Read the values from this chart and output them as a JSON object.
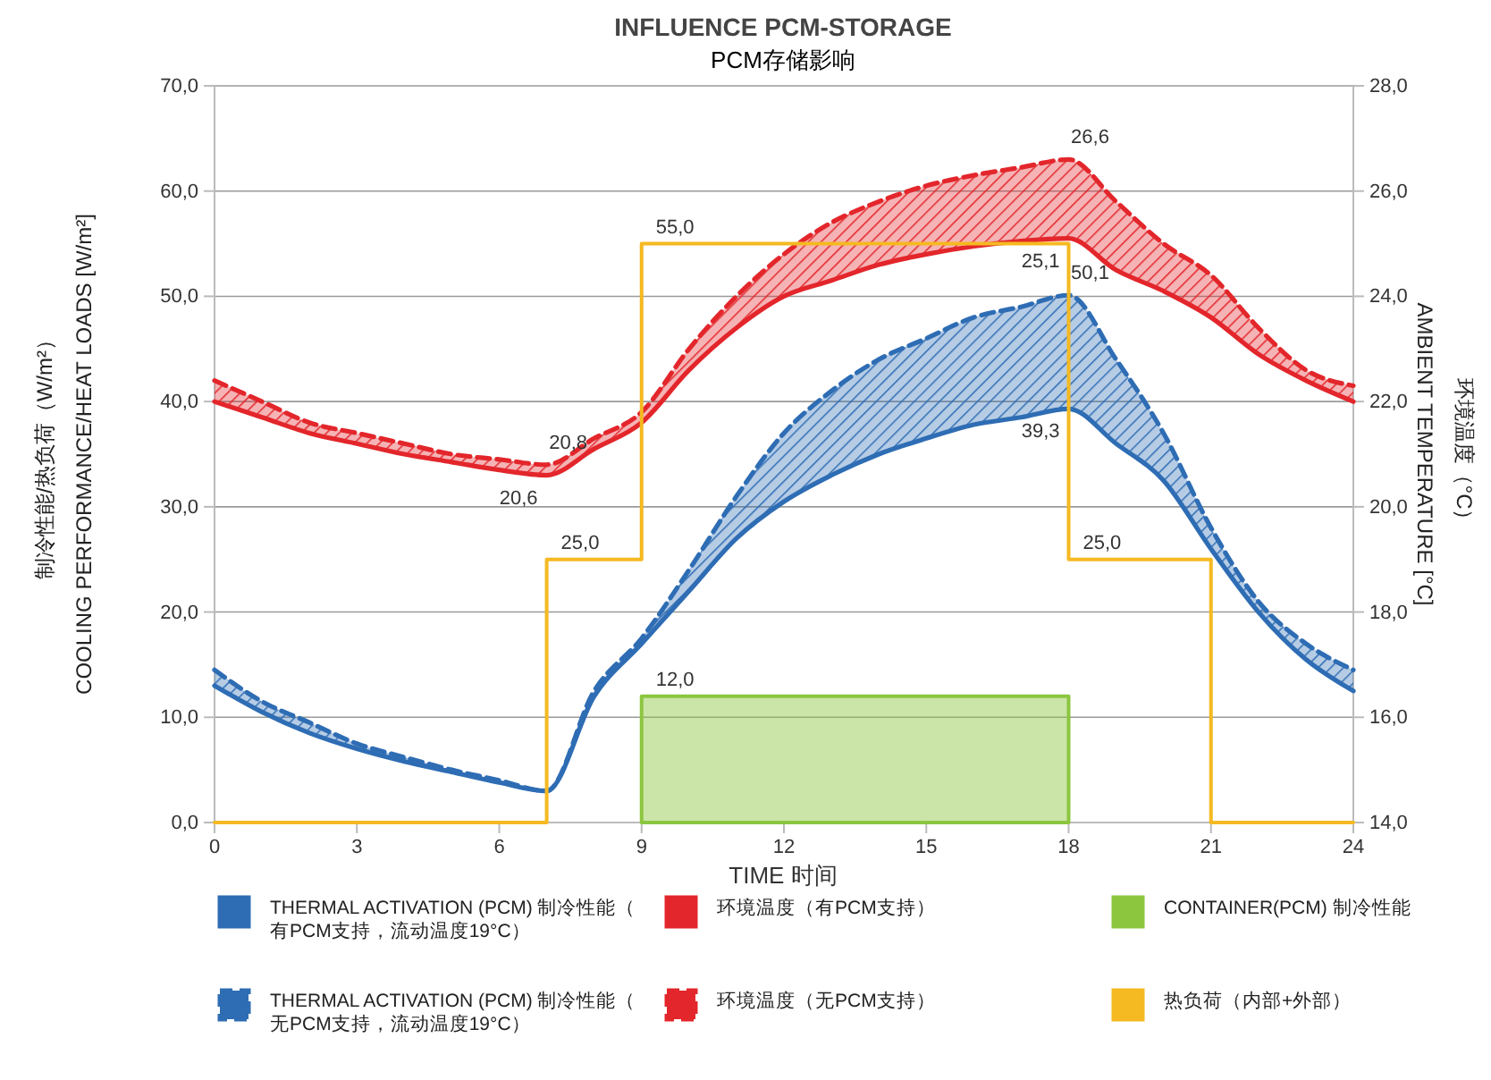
{
  "chart_data": {
    "type": "line",
    "title": "INFLUENCE PCM-STORAGE",
    "subtitle": "PCM存储影响",
    "xlabel": "TIME 时间",
    "ylabel": "COOLING PERFORMANCE/HEAT LOADS [W/m²]\n制冷性能/热负荷（W/m²）",
    "y2label": "AMBIENT TEMPERATURE [°C]\n环境温度（°C）",
    "x": [
      0,
      1,
      2,
      3,
      4,
      5,
      6,
      7,
      8,
      9,
      10,
      11,
      12,
      13,
      14,
      15,
      16,
      17,
      18,
      19,
      20,
      21,
      22,
      23,
      24
    ],
    "xlim": [
      0,
      24
    ],
    "xticks": [
      0,
      3,
      6,
      9,
      12,
      15,
      18,
      21,
      24
    ],
    "ylim": [
      0,
      70
    ],
    "yticks": [
      {
        "value": 0,
        "label": "0,0"
      },
      {
        "value": 10,
        "label": "10,0"
      },
      {
        "value": 20,
        "label": "20,0"
      },
      {
        "value": 30,
        "label": "30,0"
      },
      {
        "value": 40,
        "label": "40,0"
      },
      {
        "value": 50,
        "label": "50,0"
      },
      {
        "value": 60,
        "label": "60,0"
      },
      {
        "value": 70,
        "label": "70,0"
      }
    ],
    "y2lim": [
      14,
      28
    ],
    "y2ticks": [
      {
        "value": 14,
        "label": "14,0"
      },
      {
        "value": 16,
        "label": "16,0"
      },
      {
        "value": 18,
        "label": "18,0"
      },
      {
        "value": 20,
        "label": "20,0"
      },
      {
        "value": 22,
        "label": "22,0"
      },
      {
        "value": 24,
        "label": "24,0"
      },
      {
        "value": 26,
        "label": "26,0"
      },
      {
        "value": 28,
        "label": "28,0"
      }
    ],
    "grid": "y",
    "legend": "bottom",
    "marker": "none",
    "series": [
      {
        "name": "THERMAL ACTIVATION (PCM) 制冷性能（有PCM支持，流动温度19°C）",
        "type": "line",
        "color": "#2e6db4",
        "line_style": "solid",
        "values": [
          13,
          10.5,
          8.5,
          7,
          5.8,
          4.8,
          3.8,
          3,
          12,
          17,
          22,
          27,
          30.5,
          33,
          35,
          36.5,
          37.8,
          38.5,
          39.3,
          36,
          32.5,
          26,
          20,
          15.5,
          12.5
        ],
        "value_labels": [
          null,
          null,
          null,
          null,
          null,
          null,
          null,
          null,
          null,
          null,
          null,
          null,
          null,
          null,
          null,
          null,
          null,
          null,
          "39,3",
          null,
          null,
          null,
          null,
          null,
          null
        ]
      },
      {
        "name": "THERMAL ACTIVATION (PCM) 制冷性能（无PCM支持，流动温度19°C）",
        "type": "line",
        "color": "#2e6db4",
        "line_style": "dashed",
        "values": [
          14.5,
          11.5,
          9.5,
          7.5,
          6.2,
          5,
          4,
          3,
          12.5,
          17.5,
          24,
          31,
          37,
          41,
          44,
          46,
          48,
          49,
          50.1,
          44,
          37,
          28,
          21,
          17,
          14.5
        ],
        "lower": [
          13,
          10.5,
          8.5,
          7,
          5.8,
          4.8,
          3.8,
          3,
          12,
          17,
          22,
          27,
          30.5,
          33,
          35,
          36.5,
          37.8,
          38.5,
          39.3,
          36,
          32.5,
          26,
          20,
          15.5,
          12.5
        ],
        "upper": [
          14.5,
          11.5,
          9.5,
          7.5,
          6.2,
          5,
          4,
          3,
          12.5,
          17.5,
          24,
          31,
          37,
          41,
          44,
          46,
          48,
          49,
          50.1,
          44,
          37,
          28,
          21,
          17,
          14.5
        ],
        "value_labels": [
          null,
          null,
          null,
          null,
          null,
          null,
          null,
          null,
          null,
          null,
          null,
          null,
          null,
          null,
          null,
          null,
          null,
          null,
          "50,1",
          null,
          null,
          null,
          null,
          null,
          null
        ]
      },
      {
        "name": "环境温度（有PCM支持）",
        "type": "line",
        "axis": "y2",
        "color": "#e3262b",
        "line_style": "solid",
        "values": [
          22,
          21.7,
          21.4,
          21.2,
          21,
          20.85,
          20.7,
          20.6,
          21.1,
          21.6,
          22.6,
          23.4,
          24,
          24.3,
          24.6,
          24.8,
          24.95,
          25.05,
          25.1,
          24.5,
          24.1,
          23.6,
          22.9,
          22.4,
          22
        ],
        "value_labels": [
          null,
          null,
          null,
          null,
          null,
          null,
          null,
          "20,6",
          null,
          null,
          null,
          null,
          null,
          null,
          null,
          null,
          null,
          null,
          "25,1",
          null,
          null,
          null,
          null,
          null,
          null
        ]
      },
      {
        "name": "环境温度（无PCM支持）",
        "type": "line",
        "axis": "y2",
        "color": "#e3262b",
        "line_style": "dashed",
        "values": [
          22.4,
          22,
          21.6,
          21.4,
          21.2,
          21,
          20.9,
          20.8,
          21.3,
          21.8,
          23,
          24,
          24.8,
          25.4,
          25.8,
          26.1,
          26.3,
          26.45,
          26.6,
          25.8,
          25,
          24.4,
          23.4,
          22.6,
          22.3
        ],
        "lower": [
          22,
          21.7,
          21.4,
          21.2,
          21,
          20.85,
          20.7,
          20.6,
          21.1,
          21.6,
          22.6,
          23.4,
          24,
          24.3,
          24.6,
          24.8,
          24.95,
          25.05,
          25.1,
          24.5,
          24.1,
          23.6,
          22.9,
          22.4,
          22
        ],
        "upper": [
          22.4,
          22,
          21.6,
          21.4,
          21.2,
          21,
          20.9,
          20.8,
          21.3,
          21.8,
          23,
          24,
          24.8,
          25.4,
          25.8,
          26.1,
          26.3,
          26.45,
          26.6,
          25.8,
          25,
          24.4,
          23.4,
          22.6,
          22.3
        ],
        "value_labels": [
          null,
          null,
          null,
          null,
          null,
          null,
          null,
          "20,8",
          null,
          null,
          null,
          null,
          null,
          null,
          null,
          null,
          null,
          null,
          "26,6",
          null,
          null,
          null,
          null,
          null,
          null
        ]
      },
      {
        "name": "CONTAINER(PCM) 制冷性能",
        "type": "area",
        "color": "#8cc63f",
        "line_style": "solid",
        "x": [
          9,
          18
        ],
        "values": [
          12,
          12
        ],
        "value_labels": [
          "12,0",
          null
        ]
      },
      {
        "name": "热负荷（内部+外部）",
        "type": "step",
        "color": "#f5b921",
        "line_style": "solid",
        "x": [
          0,
          7,
          9,
          18,
          21,
          24
        ],
        "values": [
          0,
          25,
          55,
          25,
          0,
          0
        ],
        "value_labels": [
          null,
          "25,0",
          "55,0",
          "25,0",
          null,
          null
        ]
      }
    ]
  }
}
